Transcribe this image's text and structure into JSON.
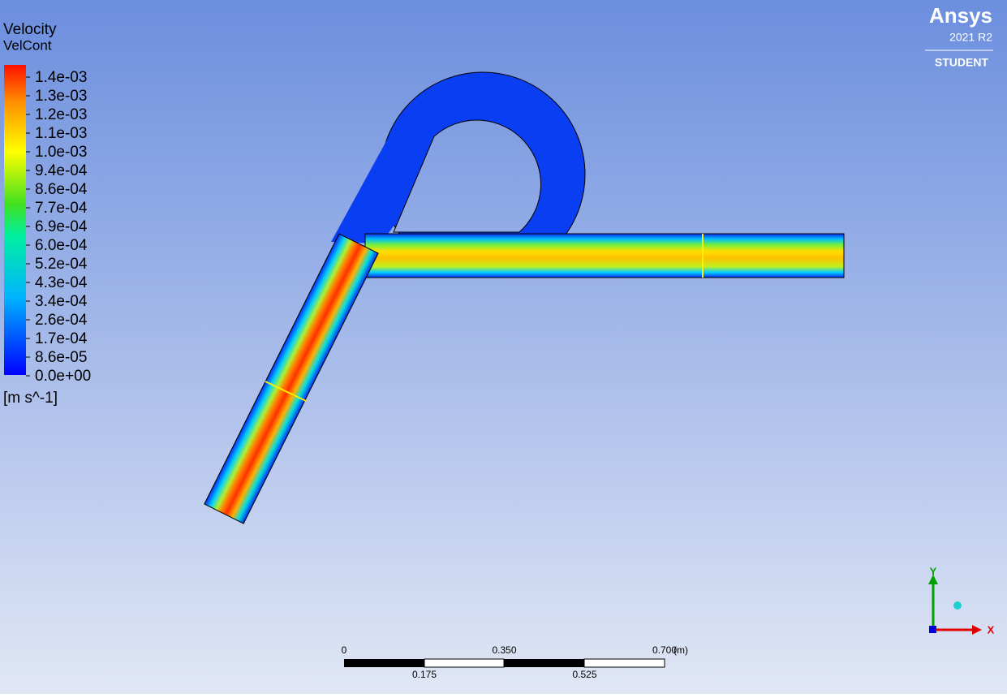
{
  "legend": {
    "title": "Velocity",
    "variable": "VelCont",
    "labels": [
      "1.4e-03",
      "1.3e-03",
      "1.2e-03",
      "1.1e-03",
      "1.0e-03",
      "9.4e-04",
      "8.6e-04",
      "7.7e-04",
      "6.9e-04",
      "6.0e-04",
      "5.2e-04",
      "4.3e-04",
      "3.4e-04",
      "2.6e-04",
      "1.7e-04",
      "8.6e-05",
      "0.0e+00"
    ],
    "unit": "[m s^-1]"
  },
  "logo": {
    "brand": "Ansys",
    "version": "2021 R2",
    "edition": "STUDENT"
  },
  "scale_bar": {
    "top_labels": [
      "0",
      "0.350",
      "0.700"
    ],
    "unit": "(m)",
    "bottom_labels": [
      "0.175",
      "0.525"
    ]
  },
  "axes": {
    "y": "Y",
    "x": "X"
  }
}
